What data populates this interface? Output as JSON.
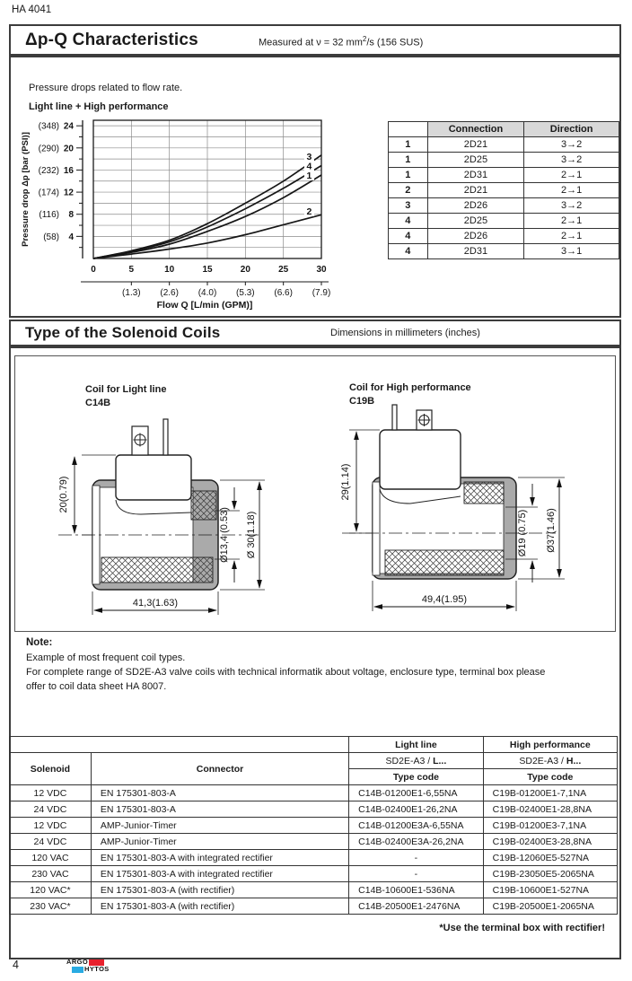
{
  "page": {
    "doc_number": "HA 4041",
    "page_number": "4",
    "footnote": "*Use the terminal box with rectifier!"
  },
  "section1": {
    "title": "Δp-Q Characteristics",
    "measured": {
      "pre": "Measured at  ν = 32 mm",
      "sup": "2",
      "post": "/s (156 SUS)"
    },
    "intro": "Pressure drops related to flow rate.",
    "chart_label": "Light line  + High performance",
    "connection_table": {
      "headers": [
        "",
        "Connection",
        "Direction"
      ],
      "rows": [
        [
          "1",
          "2D21",
          "3→2"
        ],
        [
          "1",
          "2D25",
          "3→2"
        ],
        [
          "1",
          "2D31",
          "2→1"
        ],
        [
          "2",
          "2D21",
          "2→1"
        ],
        [
          "3",
          "2D26",
          "3→2"
        ],
        [
          "4",
          "2D25",
          "2→1"
        ],
        [
          "4",
          "2D26",
          "2→1"
        ],
        [
          "4",
          "2D31",
          "3→1"
        ]
      ]
    }
  },
  "chart_data": {
    "type": "line",
    "title": "",
    "xlabel": "Flow Q [L/min (GPM)]",
    "ylabel": "Pressure drop Δp [bar (PSI)]",
    "xlim": [
      0,
      30
    ],
    "ylim": [
      0,
      25
    ],
    "grid": true,
    "x_ticks": [
      0,
      5,
      10,
      15,
      20,
      25,
      30
    ],
    "x_ticks_gpm": [
      "(1.3)",
      "(2.6)",
      "(4.0)",
      "(5.3)",
      "(6.6)",
      "(7.9)"
    ],
    "y_ticks": [
      4,
      8,
      12,
      16,
      20,
      24
    ],
    "y_ticks_psi": [
      "(58)",
      "(116)",
      "(174)",
      "(232)",
      "(290)",
      "(348)"
    ],
    "series": [
      {
        "name": "3",
        "x": [
          0,
          5,
          10,
          15,
          20,
          25,
          30
        ],
        "values": [
          0,
          1.4,
          3.3,
          6.3,
          10.0,
          14.0,
          18.7
        ]
      },
      {
        "name": "4",
        "x": [
          0,
          5,
          10,
          15,
          20,
          25,
          30
        ],
        "values": [
          0,
          1.3,
          3.0,
          5.7,
          9.0,
          12.7,
          16.8
        ]
      },
      {
        "name": "1",
        "x": [
          0,
          5,
          10,
          15,
          20,
          25,
          30
        ],
        "values": [
          0,
          1.1,
          2.6,
          4.9,
          7.6,
          11.0,
          15.1
        ]
      },
      {
        "name": "2",
        "x": [
          0,
          5,
          10,
          15,
          20,
          25,
          30
        ],
        "values": [
          0,
          0.8,
          1.7,
          2.8,
          4.3,
          6.1,
          7.9
        ]
      }
    ]
  },
  "section2": {
    "title": "Type of the Solenoid Coils",
    "subtitle": "Dimensions in millimeters (inches)",
    "coils": [
      {
        "caption_line1": "Coil for Light line",
        "caption_line2": "C14B",
        "dim_height": "20(0.79)",
        "dim_inner": "Ø13,4 (0.53)",
        "dim_outer": "Ø 30(1.18)",
        "dim_width": "41,3(1.63)"
      },
      {
        "caption_line1": "Coil for High performance",
        "caption_line2": "C19B",
        "dim_height": "29(1.14)",
        "dim_inner": "Ø19 (0.75)",
        "dim_outer": "Ø37(1.46)",
        "dim_width": "49,4(1.95)"
      }
    ],
    "note_title": "Note:",
    "note_lines": [
      "Example of most frequent coil types.",
      "For complete range of SD2E-A3 valve coils with technical informatik about voltage, enclosure type, terminal box please",
      "offer to coil data sheet HA 8007."
    ],
    "coil_table": {
      "group_headers": [
        "Light line",
        "High performance"
      ],
      "sub_headers": [
        {
          "prefix": "SD2E-A3 / ",
          "bold": "L..."
        },
        {
          "prefix": "SD2E-A3 / ",
          "bold": "H..."
        }
      ],
      "type_code_label": "Type code",
      "col_headers": [
        "Solenoid",
        "Connector"
      ],
      "rows": [
        [
          "12 VDC",
          "EN 175301-803-A",
          "C14B-01200E1-6,55NA",
          "C19B-01200E1-7,1NA"
        ],
        [
          "24 VDC",
          "EN 175301-803-A",
          "C14B-02400E1-26,2NA",
          "C19B-02400E1-28,8NA"
        ],
        [
          "12 VDC",
          "AMP-Junior-Timer",
          "C14B-01200E3A-6,55NA",
          "C19B-01200E3-7,1NA"
        ],
        [
          "24 VDC",
          "AMP-Junior-Timer",
          "C14B-02400E3A-26,2NA",
          "C19B-02400E3-28,8NA"
        ],
        [
          "120 VAC",
          "EN 175301-803-A with integrated rectifier",
          "-",
          "C19B-12060E5-527NA"
        ],
        [
          "230 VAC",
          "EN 175301-803-A with integrated rectifier",
          "-",
          "C19B-23050E5-2065NA"
        ],
        [
          "120 VAC*",
          "EN 175301-803-A (with rectifier)",
          "C14B-10600E1-536NA",
          "C19B-10600E1-527NA"
        ],
        [
          "230 VAC*",
          "EN 175301-803-A (with rectifier)",
          "C14B-20500E1-2476NA",
          "C19B-20500E1-2065NA"
        ]
      ]
    }
  },
  "logo": {
    "line1": "ARGO",
    "line2": "HYTOS",
    "red": "#e8212d",
    "blue": "#29abe2"
  },
  "colors": {
    "table_header_bg": "#d8d8d8",
    "border": "#3c3c3c",
    "curve": "#161616"
  }
}
